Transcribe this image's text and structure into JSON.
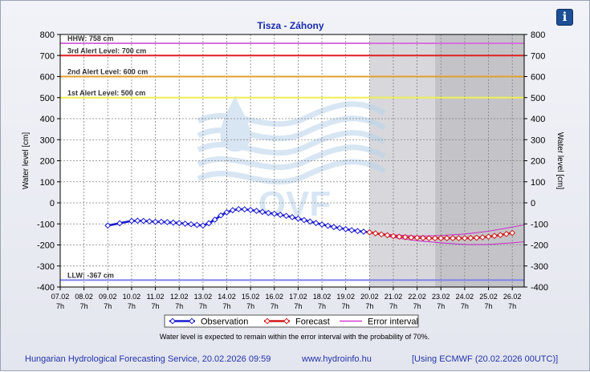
{
  "info_icon": "info-icon",
  "footer": {
    "service": "Hungarian Hydrological Forecasting Service, 20.02.2026 09:59",
    "website": "www.hydroinfo.hu",
    "model": "[Using ECMWF (20.02.2026  00UTC)]"
  },
  "chart_data": {
    "type": "line",
    "title": "Tisza - Záhony",
    "ylabel_left": "Water level [cm]",
    "ylabel_right": "Water level [cm]",
    "ylim": [
      -400,
      800
    ],
    "yticks": [
      -400,
      -300,
      -200,
      -100,
      0,
      100,
      200,
      300,
      400,
      500,
      600,
      700,
      800
    ],
    "x_day_range": [
      7,
      26.5
    ],
    "xticks": [
      {
        "day": 7,
        "date": "07.02",
        "hour": "7h"
      },
      {
        "day": 8,
        "date": "08.02",
        "hour": "7h"
      },
      {
        "day": 9,
        "date": "09.02",
        "hour": "7h"
      },
      {
        "day": 10,
        "date": "10.02",
        "hour": "7h"
      },
      {
        "day": 11,
        "date": "11.02",
        "hour": "7h"
      },
      {
        "day": 12,
        "date": "12.02",
        "hour": "7h"
      },
      {
        "day": 13,
        "date": "13.02",
        "hour": "7h"
      },
      {
        "day": 14,
        "date": "14.02",
        "hour": "7h"
      },
      {
        "day": 15,
        "date": "15.02",
        "hour": "7h"
      },
      {
        "day": 16,
        "date": "16.02",
        "hour": "7h"
      },
      {
        "day": 17,
        "date": "17.02",
        "hour": "7h"
      },
      {
        "day": 18,
        "date": "18.02",
        "hour": "7h"
      },
      {
        "day": 19,
        "date": "19.02",
        "hour": "7h"
      },
      {
        "day": 20,
        "date": "20.02",
        "hour": "7h"
      },
      {
        "day": 21,
        "date": "21.02",
        "hour": "7h"
      },
      {
        "day": 22,
        "date": "22.02",
        "hour": "7h"
      },
      {
        "day": 23,
        "date": "23.02",
        "hour": "7h"
      },
      {
        "day": 24,
        "date": "24.02",
        "hour": "7h"
      },
      {
        "day": 25,
        "date": "25.02",
        "hour": "7h"
      },
      {
        "day": 26,
        "date": "26.02",
        "hour": "7h"
      }
    ],
    "shaded_periods": [
      {
        "from_day": 20,
        "to_day": 22.75,
        "color": "#d8d8dc"
      },
      {
        "from_day": 22.75,
        "to_day": 26.5,
        "color": "#c4c4c8"
      }
    ],
    "reference_lines": [
      {
        "label": "HHW: 758 cm",
        "value": 758,
        "color": "#d470dd"
      },
      {
        "label": "3rd Alert Level: 700 cm",
        "value": 700,
        "color": "#e02020"
      },
      {
        "label": "2nd Alert Level: 600 cm",
        "value": 600,
        "color": "#e0a030"
      },
      {
        "label": "1st Alert Level: 500 cm",
        "value": 500,
        "color": "#eef050"
      },
      {
        "label": "LLW: -367 cm",
        "value": -367,
        "color": "#8080ee"
      }
    ],
    "series": [
      {
        "name": "Observation",
        "color": "#1a1ad0",
        "x_day": [
          9,
          9.5,
          10,
          10.25,
          10.5,
          10.75,
          11,
          11.25,
          11.5,
          11.75,
          12,
          12.25,
          12.5,
          12.75,
          13,
          13.25,
          13.5,
          13.75,
          14,
          14.25,
          14.5,
          14.75,
          15,
          15.25,
          15.5,
          15.75,
          16,
          16.25,
          16.5,
          16.75,
          17,
          17.25,
          17.5,
          17.75,
          18,
          18.25,
          18.5,
          18.75,
          19,
          19.25,
          19.5,
          19.75,
          20
        ],
        "y": [
          -108,
          -97,
          -86,
          -85,
          -86,
          -88,
          -90,
          -90,
          -92,
          -94,
          -96,
          -99,
          -102,
          -105,
          -108,
          -97,
          -80,
          -60,
          -45,
          -35,
          -30,
          -31,
          -34,
          -38,
          -43,
          -48,
          -52,
          -57,
          -62,
          -68,
          -75,
          -82,
          -89,
          -96,
          -103,
          -109,
          -115,
          -120,
          -125,
          -130,
          -134,
          -137,
          -140
        ]
      },
      {
        "name": "Forecast",
        "color": "#d01a1a",
        "x_day": [
          20,
          20.25,
          20.5,
          20.75,
          21,
          21.25,
          21.5,
          21.75,
          22,
          22.25,
          22.5,
          22.75,
          23,
          23.25,
          23.5,
          23.75,
          24,
          24.25,
          24.5,
          24.75,
          25,
          25.25,
          25.5,
          25.75,
          26
        ],
        "y": [
          -140,
          -145,
          -150,
          -154,
          -158,
          -161,
          -163,
          -165,
          -166,
          -167,
          -168,
          -168,
          -168,
          -168,
          -168,
          -168,
          -168,
          -167,
          -166,
          -164,
          -161,
          -157,
          -153,
          -148,
          -143
        ]
      },
      {
        "name": "Error interval",
        "color": "#cc22cc",
        "x_day": [
          20,
          21,
          22,
          23,
          24,
          25,
          26,
          26.5
        ],
        "upper": [
          -140,
          -152,
          -158,
          -155,
          -148,
          -135,
          -115,
          -105
        ],
        "lower": [
          -140,
          -165,
          -180,
          -190,
          -198,
          -198,
          -190,
          -185
        ]
      }
    ],
    "legend": {
      "placement": "bottom",
      "items": [
        "Observation",
        "Forecast",
        "Error interval"
      ]
    },
    "note": "Water level is expected to remain within the error interval with the probability of 70%.",
    "watermark": "OVF"
  }
}
